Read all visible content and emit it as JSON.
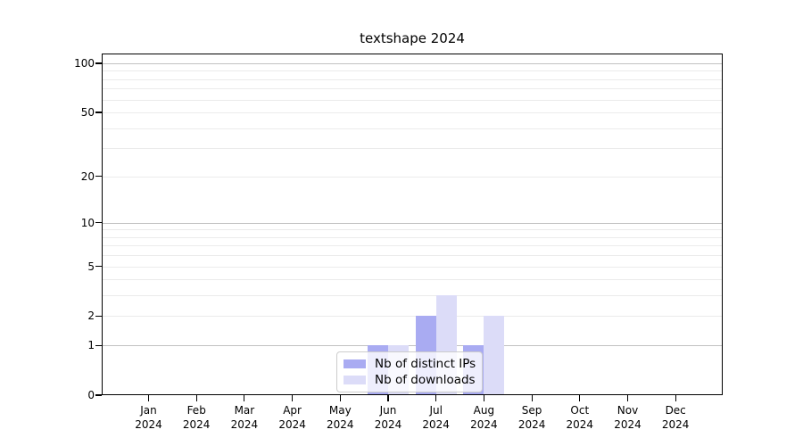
{
  "chart_data": {
    "type": "bar",
    "title": "textshape 2024",
    "categories": [
      {
        "month": "Jan",
        "year": "2024"
      },
      {
        "month": "Feb",
        "year": "2024"
      },
      {
        "month": "Mar",
        "year": "2024"
      },
      {
        "month": "Apr",
        "year": "2024"
      },
      {
        "month": "May",
        "year": "2024"
      },
      {
        "month": "Jun",
        "year": "2024"
      },
      {
        "month": "Jul",
        "year": "2024"
      },
      {
        "month": "Aug",
        "year": "2024"
      },
      {
        "month": "Sep",
        "year": "2024"
      },
      {
        "month": "Oct",
        "year": "2024"
      },
      {
        "month": "Nov",
        "year": "2024"
      },
      {
        "month": "Dec",
        "year": "2024"
      }
    ],
    "series": [
      {
        "name": "Nb of distinct IPs",
        "color": "#a9abf2",
        "values": [
          0,
          0,
          0,
          0,
          0,
          1,
          2,
          1,
          0,
          0,
          0,
          0
        ]
      },
      {
        "name": "Nb of downloads",
        "color": "#dcdcf8",
        "values": [
          0,
          0,
          0,
          0,
          0,
          1,
          3,
          2,
          0,
          0,
          0,
          0
        ]
      }
    ],
    "yscale": "log1p",
    "ylim": [
      0,
      114.7
    ],
    "yticks": [
      0,
      1,
      2,
      5,
      10,
      20,
      50,
      100
    ],
    "major_gridlines": [
      1,
      10,
      100
    ],
    "minor_gridlines": [
      2,
      3,
      4,
      5,
      6,
      7,
      8,
      9,
      20,
      30,
      40,
      50,
      60,
      70,
      80,
      90
    ],
    "grid": true,
    "legend_position": "lower center",
    "xlabel": "",
    "ylabel": ""
  },
  "colors": {
    "bar_distinct_ips": "#a9abf2",
    "bar_downloads": "#dcdcf8",
    "major_grid": "#c2c2c2",
    "minor_grid": "#ebebeb",
    "spine": "#000000",
    "legend_border": "#cccccc",
    "legend_background": "rgba(255,255,255,0.8)",
    "background": "#ffffff"
  }
}
